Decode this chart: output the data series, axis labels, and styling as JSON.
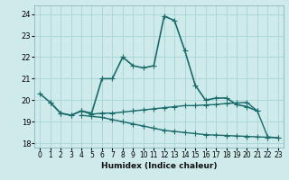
{
  "xlabel": "Humidex (Indice chaleur)",
  "bg_color": "#ceeaea",
  "grid_color": "#a8d4d8",
  "line_color": "#1a6b6b",
  "xlim": [
    -0.5,
    23.5
  ],
  "ylim": [
    17.8,
    24.4
  ],
  "yticks": [
    18,
    19,
    20,
    21,
    22,
    23,
    24
  ],
  "xticks": [
    0,
    1,
    2,
    3,
    4,
    5,
    6,
    7,
    8,
    9,
    10,
    11,
    12,
    13,
    14,
    15,
    16,
    17,
    18,
    19,
    20,
    21,
    22,
    23
  ],
  "series": [
    {
      "x": [
        0,
        1,
        2,
        3,
        4,
        5,
        6,
        7,
        8,
        9,
        10,
        11,
        12,
        13,
        14,
        15,
        16,
        17,
        18,
        19,
        20,
        21
      ],
      "y": [
        20.3,
        19.9,
        19.4,
        19.3,
        19.5,
        19.4,
        21.0,
        21.0,
        22.0,
        21.6,
        21.5,
        21.6,
        23.9,
        23.7,
        22.3,
        20.7,
        20.0,
        20.1,
        20.1,
        19.8,
        19.7,
        19.5
      ],
      "marker": "+",
      "markersize": 4,
      "linewidth": 1.2
    },
    {
      "x": [
        1,
        2,
        3,
        4,
        5,
        6,
        7,
        8,
        9,
        10,
        11,
        12,
        13,
        14,
        15,
        16,
        17,
        18,
        19,
        20,
        21,
        22,
        23
      ],
      "y": [
        19.9,
        19.4,
        19.3,
        19.5,
        19.35,
        19.4,
        19.4,
        19.45,
        19.5,
        19.55,
        19.6,
        19.65,
        19.7,
        19.75,
        19.75,
        19.78,
        19.8,
        19.85,
        19.87,
        19.9,
        19.5,
        18.3,
        18.25
      ],
      "marker": "+",
      "markersize": 4,
      "linewidth": 1.0
    },
    {
      "x": [
        4,
        5,
        6,
        7,
        8,
        9,
        10,
        11,
        12,
        13,
        14,
        15,
        16,
        17,
        18,
        19,
        20,
        21,
        22,
        23
      ],
      "y": [
        19.3,
        19.25,
        19.2,
        19.1,
        19.0,
        18.9,
        18.8,
        18.7,
        18.6,
        18.55,
        18.5,
        18.45,
        18.4,
        18.38,
        18.36,
        18.34,
        18.32,
        18.3,
        18.28,
        18.26
      ],
      "marker": "+",
      "markersize": 4,
      "linewidth": 1.0
    }
  ]
}
